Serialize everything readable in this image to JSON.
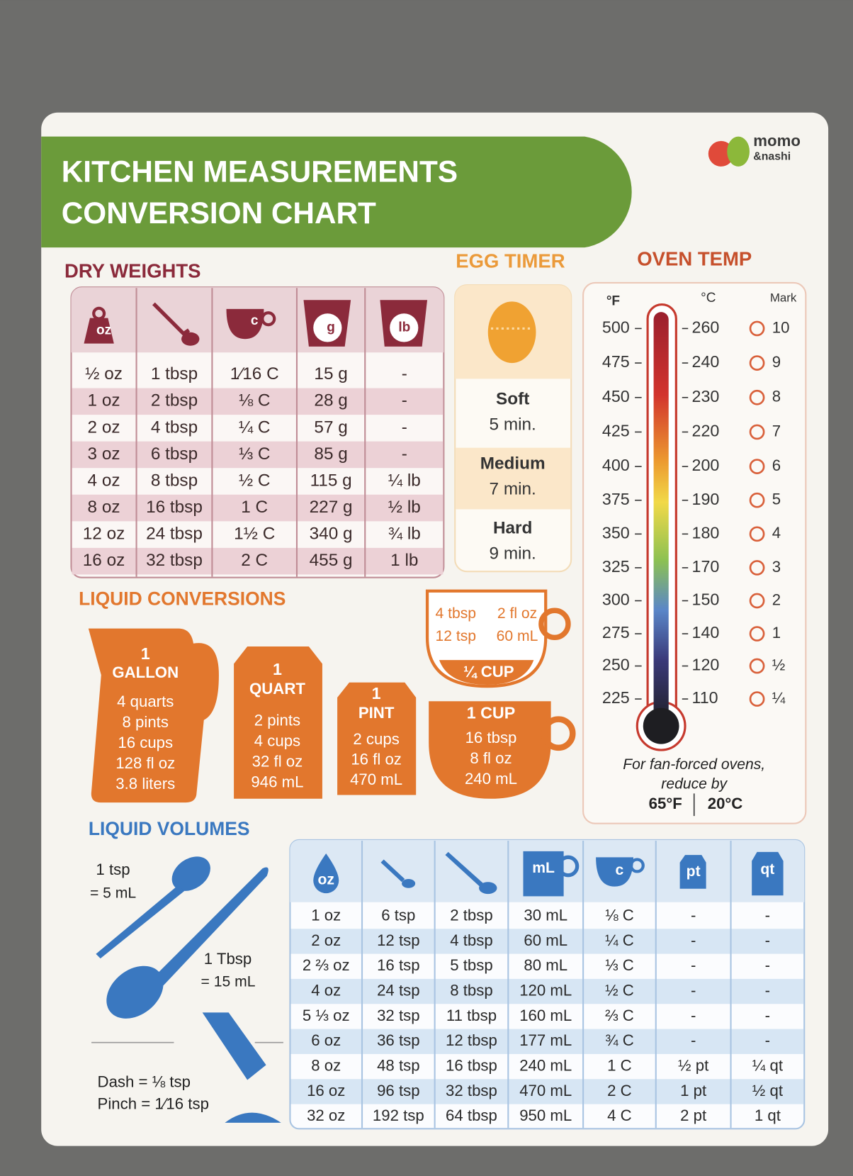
{
  "header": {
    "title": [
      "KITCHEN MEASUREMENTS",
      "CONVERSION CHART"
    ],
    "brand": [
      "momo",
      "&nashi"
    ]
  },
  "dry_weights": {
    "title": "DRY WEIGHTS",
    "column_labels": [
      "oz",
      null,
      "c",
      "g",
      "lb"
    ],
    "rows": [
      [
        "½ oz",
        "1 tbsp",
        "1⁄16 C",
        "15 g",
        "-"
      ],
      [
        "1 oz",
        "2 tbsp",
        "⅛ C",
        "28 g",
        "-"
      ],
      [
        "2 oz",
        "4 tbsp",
        "¼ C",
        "57 g",
        "-"
      ],
      [
        "3 oz",
        "6 tbsp",
        "⅓ C",
        "85 g",
        "-"
      ],
      [
        "4 oz",
        "8 tbsp",
        "½ C",
        "115 g",
        "¼ lb"
      ],
      [
        "8 oz",
        "16 tbsp",
        "1 C",
        "227 g",
        "½ lb"
      ],
      [
        "12 oz",
        "24 tbsp",
        "1½ C",
        "340 g",
        "¾ lb"
      ],
      [
        "16 oz",
        "32 tbsp",
        "2 C",
        "455 g",
        "1 lb"
      ]
    ]
  },
  "egg_timer": {
    "title": "EGG TIMER",
    "items": [
      {
        "name": "Soft",
        "time": "5 min."
      },
      {
        "name": "Medium",
        "time": "7 min."
      },
      {
        "name": "Hard",
        "time": "9 min."
      }
    ]
  },
  "oven_temp": {
    "title": "OVEN TEMP",
    "headers": [
      "°F",
      "°C",
      "Mark"
    ],
    "rows": [
      [
        "500",
        "260",
        "10"
      ],
      [
        "475",
        "240",
        "9"
      ],
      [
        "450",
        "230",
        "8"
      ],
      [
        "425",
        "220",
        "7"
      ],
      [
        "400",
        "200",
        "6"
      ],
      [
        "375",
        "190",
        "5"
      ],
      [
        "350",
        "180",
        "4"
      ],
      [
        "325",
        "170",
        "3"
      ],
      [
        "300",
        "150",
        "2"
      ],
      [
        "275",
        "140",
        "1"
      ],
      [
        "250",
        "120",
        "½"
      ],
      [
        "225",
        "110",
        "¼"
      ]
    ],
    "note": [
      "For fan-forced ovens,",
      "reduce by"
    ],
    "reduction": [
      "65°F",
      "20°C"
    ]
  },
  "liquid_conversions": {
    "title": "LIQUID CONVERSIONS",
    "gallon": {
      "amount": "1",
      "unit": "GALLON",
      "lines": [
        "4 quarts",
        "8 pints",
        "16 cups",
        "128 fl oz",
        "3.8 liters"
      ]
    },
    "quart": {
      "amount": "1",
      "unit": "QUART",
      "lines": [
        "2 pints",
        "4 cups",
        "32 fl oz",
        "946 mL"
      ]
    },
    "pint": {
      "amount": "1",
      "unit": "PINT",
      "lines": [
        "2 cups",
        "16 fl oz",
        "470 mL"
      ]
    },
    "quarter_cup": {
      "lines": [
        "4 tbsp",
        "2 fl oz",
        "12 tsp",
        "60 mL"
      ],
      "label": "¼ CUP"
    },
    "cup": {
      "label": "1 CUP",
      "lines": [
        "16 tbsp",
        "8 fl oz",
        "240 mL"
      ]
    }
  },
  "liquid_volumes": {
    "title": "LIQUID VOLUMES",
    "tsp": [
      "1 tsp",
      "= 5 mL"
    ],
    "tbsp": [
      "1 Tbsp",
      "= 15 mL"
    ],
    "dash": "Dash = ⅛ tsp",
    "pinch": "Pinch = 1⁄16 tsp",
    "column_labels": [
      "oz",
      null,
      null,
      "mL",
      "c",
      "pt",
      "qt"
    ],
    "rows": [
      [
        "1 oz",
        "6 tsp",
        "2 tbsp",
        "30 mL",
        "⅛ C",
        "-",
        "-"
      ],
      [
        "2 oz",
        "12 tsp",
        "4 tbsp",
        "60 mL",
        "¼ C",
        "-",
        "-"
      ],
      [
        "2 ⅔ oz",
        "16 tsp",
        "5 tbsp",
        "80 mL",
        "⅓ C",
        "-",
        "-"
      ],
      [
        "4 oz",
        "24 tsp",
        "8 tbsp",
        "120 mL",
        "½ C",
        "-",
        "-"
      ],
      [
        "5 ⅓ oz",
        "32 tsp",
        "11 tbsp",
        "160 mL",
        "⅔ C",
        "-",
        "-"
      ],
      [
        "6 oz",
        "36 tsp",
        "12 tbsp",
        "177 mL",
        "¾ C",
        "-",
        "-"
      ],
      [
        "8 oz",
        "48 tsp",
        "16 tbsp",
        "240 mL",
        "1 C",
        "½ pt",
        "¼ qt"
      ],
      [
        "16 oz",
        "96 tsp",
        "32 tbsp",
        "470 mL",
        "2 C",
        "1 pt",
        "½ qt"
      ],
      [
        "32 oz",
        "192 tsp",
        "64 tbsp",
        "950 mL",
        "4 C",
        "2 pt",
        "1 qt"
      ]
    ]
  }
}
